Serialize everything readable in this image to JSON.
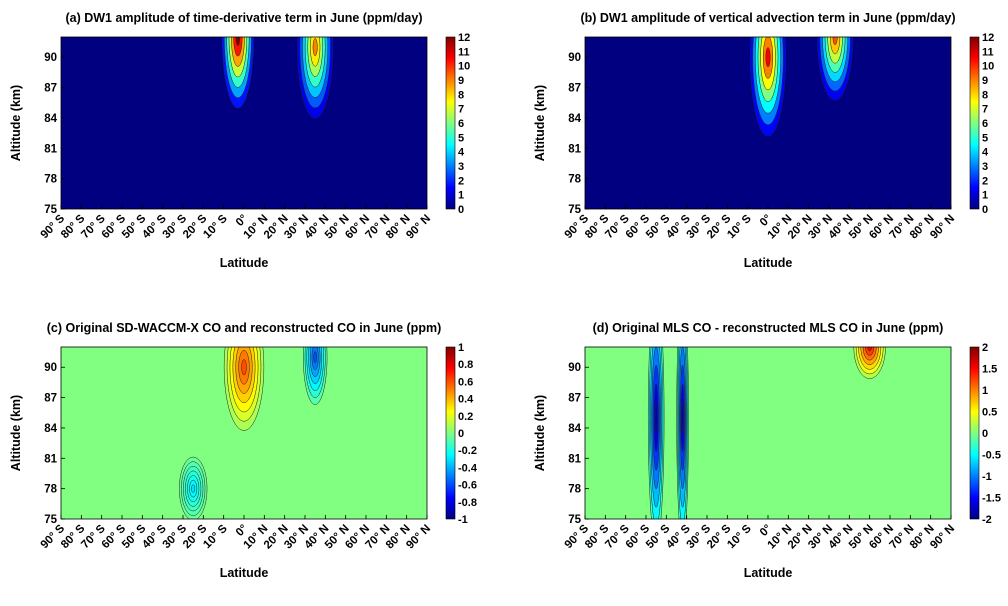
{
  "chart_data": [
    {
      "type": "heatmap",
      "title": "(a) DW1 amplitude of time-derivative term in June (ppm/day)",
      "xlabel": "Latitude",
      "ylabel": "Altitude (km)",
      "xticks": [
        "90° S",
        "80° S",
        "70° S",
        "60° S",
        "50° S",
        "40° S",
        "30° S",
        "20° S",
        "10° S",
        "0°",
        "10° N",
        "20° N",
        "30° N",
        "40° N",
        "50° N",
        "60° N",
        "70° N",
        "80° N",
        "90° N"
      ],
      "yticks": [
        "75",
        "78",
        "81",
        "84",
        "87",
        "90"
      ],
      "xlim": [
        -90,
        90
      ],
      "ylim": [
        75,
        92
      ],
      "colorbar": {
        "min": 0,
        "max": 12,
        "ticks": [
          "0",
          "1",
          "2",
          "3",
          "4",
          "5",
          "6",
          "7",
          "8",
          "9",
          "10",
          "11",
          "12"
        ]
      },
      "features": [
        {
          "lat": -3,
          "alt": 92,
          "value": 12,
          "width": 8,
          "depth": 4.5
        },
        {
          "lat": 35,
          "alt": 91,
          "value": 9,
          "width": 9,
          "depth": 4.5
        }
      ]
    },
    {
      "type": "heatmap",
      "title": "(b) DW1 amplitude of vertical advection term in June (ppm/day)",
      "xlabel": "Latitude",
      "ylabel": "Altitude (km)",
      "xticks": [
        "90° S",
        "80° S",
        "70° S",
        "60° S",
        "50° S",
        "40° S",
        "30° S",
        "20° S",
        "10° S",
        "0°",
        "10° N",
        "20° N",
        "30° N",
        "40° N",
        "50° N",
        "60° N",
        "70° N",
        "80° N",
        "90° N"
      ],
      "yticks": [
        "75",
        "78",
        "81",
        "84",
        "87",
        "90"
      ],
      "xlim": [
        -90,
        90
      ],
      "ylim": [
        75,
        92
      ],
      "colorbar": {
        "min": 0,
        "max": 12,
        "ticks": [
          "0",
          "1",
          "2",
          "3",
          "4",
          "5",
          "6",
          "7",
          "8",
          "9",
          "10",
          "11",
          "12"
        ]
      },
      "features": [
        {
          "lat": 0,
          "alt": 90,
          "value": 10.5,
          "width": 9,
          "depth": 5
        },
        {
          "lat": 33,
          "alt": 92,
          "value": 9.5,
          "width": 9,
          "depth": 4
        }
      ]
    },
    {
      "type": "heatmap",
      "title": "(c) Original SD-WACCM-X CO and reconstructed CO in June (ppm)",
      "xlabel": "Latitude",
      "ylabel": "Altitude (km)",
      "xticks": [
        "90° S",
        "80° S",
        "70° S",
        "60° S",
        "50° S",
        "40° S",
        "30° S",
        "20° S",
        "10° S",
        "0°",
        "10° N",
        "20° N",
        "30° N",
        "40° N",
        "50° N",
        "60° N",
        "70° N",
        "80° N",
        "90° N"
      ],
      "yticks": [
        "75",
        "78",
        "81",
        "84",
        "87",
        "90"
      ],
      "xlim": [
        -90,
        90
      ],
      "ylim": [
        75,
        92
      ],
      "colorbar": {
        "min": -1,
        "max": 1,
        "ticks": [
          "1",
          "0.8",
          "0.6",
          "0.4",
          "0.2",
          "0",
          "-0.2",
          "-0.4",
          "-0.6",
          "-0.8",
          "-1"
        ]
      },
      "features": [
        {
          "lat": 0,
          "alt": 90,
          "value": 0.6,
          "width": 10,
          "depth": 4
        },
        {
          "lat": 35,
          "alt": 91,
          "value": -0.6,
          "width": 6,
          "depth": 3
        },
        {
          "lat": -25,
          "alt": 78,
          "value": -0.3,
          "width": 7,
          "depth": 2
        }
      ]
    },
    {
      "type": "heatmap",
      "title": "(d) Original MLS CO - reconstructed MLS CO in June (ppm)",
      "xlabel": "Latitude",
      "ylabel": "Altitude (km)",
      "xticks": [
        "90° S",
        "80° S",
        "70° S",
        "60° S",
        "50° S",
        "40° S",
        "30° S",
        "20° S",
        "10° S",
        "0°",
        "10° N",
        "20° N",
        "30° N",
        "40° N",
        "50° N",
        "60° N",
        "70° N",
        "80° N",
        "90° N"
      ],
      "yticks": [
        "75",
        "78",
        "81",
        "84",
        "87",
        "90"
      ],
      "xlim": [
        -90,
        90
      ],
      "ylim": [
        75,
        92
      ],
      "colorbar": {
        "min": -2,
        "max": 2,
        "ticks": [
          "2",
          "1.5",
          "1",
          "0.5",
          "0",
          "-0.5",
          "-1",
          "-1.5",
          "-2"
        ]
      },
      "features": [
        {
          "lat": -55,
          "alt": 85,
          "value": -1.8,
          "width": 4,
          "depth": 8
        },
        {
          "lat": -42,
          "alt": 85,
          "value": -1.8,
          "width": 3,
          "depth": 8
        },
        {
          "lat": 50,
          "alt": 92,
          "value": 1.5,
          "width": 8,
          "depth": 2
        }
      ]
    }
  ]
}
